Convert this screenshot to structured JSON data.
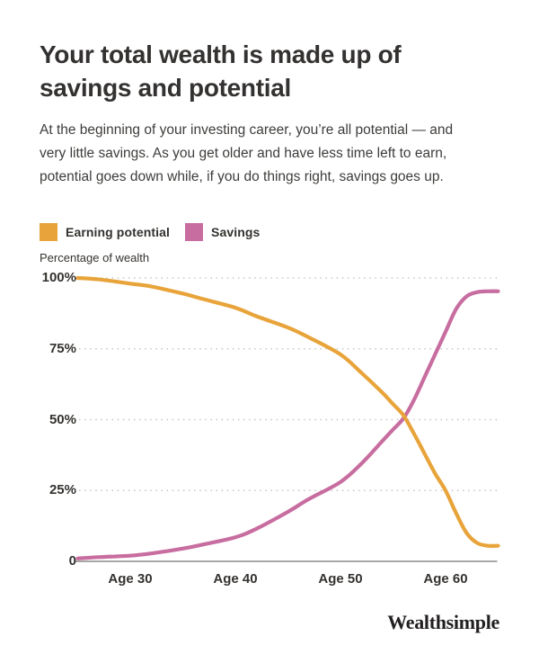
{
  "page": {
    "background_color": "#ffffff"
  },
  "header": {
    "title_lines": [
      "Your total wealth is made up of",
      "savings and potential"
    ],
    "description_lines": [
      "At the beginning of your investing career, you’re all potential — and",
      "very little savings. As you get older and have less time left to earn,",
      "potential goes down while, if you do things right, savings goes up."
    ]
  },
  "legend": [
    {
      "label": "Earning potential",
      "color": "#e8a43a"
    },
    {
      "label": "Savings",
      "color": "#c86da0"
    }
  ],
  "chart_data": {
    "type": "line",
    "title": "",
    "xlabel": "",
    "ylabel": "Percentage of wealth",
    "x_axis_unit": "age",
    "x_range": [
      25,
      65
    ],
    "ylim": [
      0,
      100
    ],
    "x_ticks": [
      30,
      40,
      50,
      60
    ],
    "x_tick_labels": [
      "Age 30",
      "Age 40",
      "Age 50",
      "Age 60"
    ],
    "y_ticks": [
      100,
      75,
      50,
      25,
      0
    ],
    "y_tick_labels": [
      "100%",
      "75%",
      "50%",
      "25%",
      "0"
    ],
    "grid": "horizontal-dotted",
    "legend_position": "top-left",
    "series": [
      {
        "name": "Earning potential",
        "color": "#e8a43a",
        "x": [
          25,
          27,
          30,
          32,
          35,
          37,
          40,
          42,
          45,
          47,
          50,
          52,
          54,
          55,
          56,
          57,
          58,
          59,
          60,
          61,
          62,
          63,
          64,
          65
        ],
        "values": [
          100,
          99.5,
          98,
          97,
          94.5,
          92.5,
          89.5,
          86.5,
          82.5,
          79,
          73,
          66.5,
          59.5,
          55.5,
          51.5,
          45,
          38,
          31,
          25,
          17,
          10,
          6.5,
          5.5,
          5.5
        ]
      },
      {
        "name": "Savings",
        "color": "#c86da0",
        "x": [
          25,
          27,
          30,
          32,
          35,
          37,
          40,
          42,
          45,
          47,
          50,
          52,
          54,
          55,
          56,
          57,
          58,
          59,
          60,
          61,
          62,
          63,
          64,
          65
        ],
        "values": [
          1,
          1.5,
          2,
          2.8,
          4.5,
          6,
          8.5,
          11.5,
          17.5,
          22,
          28,
          34.5,
          42.5,
          46.5,
          50.5,
          57,
          65,
          73,
          81,
          89,
          93.5,
          95,
          95.3,
          95.3
        ]
      }
    ],
    "crossing_point": {
      "age": 56,
      "percent": 50
    },
    "colors": {
      "grid": "#c6c6c6",
      "axis": "#8c8c8c",
      "tick_text": "#34322f"
    }
  },
  "footer": {
    "brand": "Wealthsimple"
  }
}
